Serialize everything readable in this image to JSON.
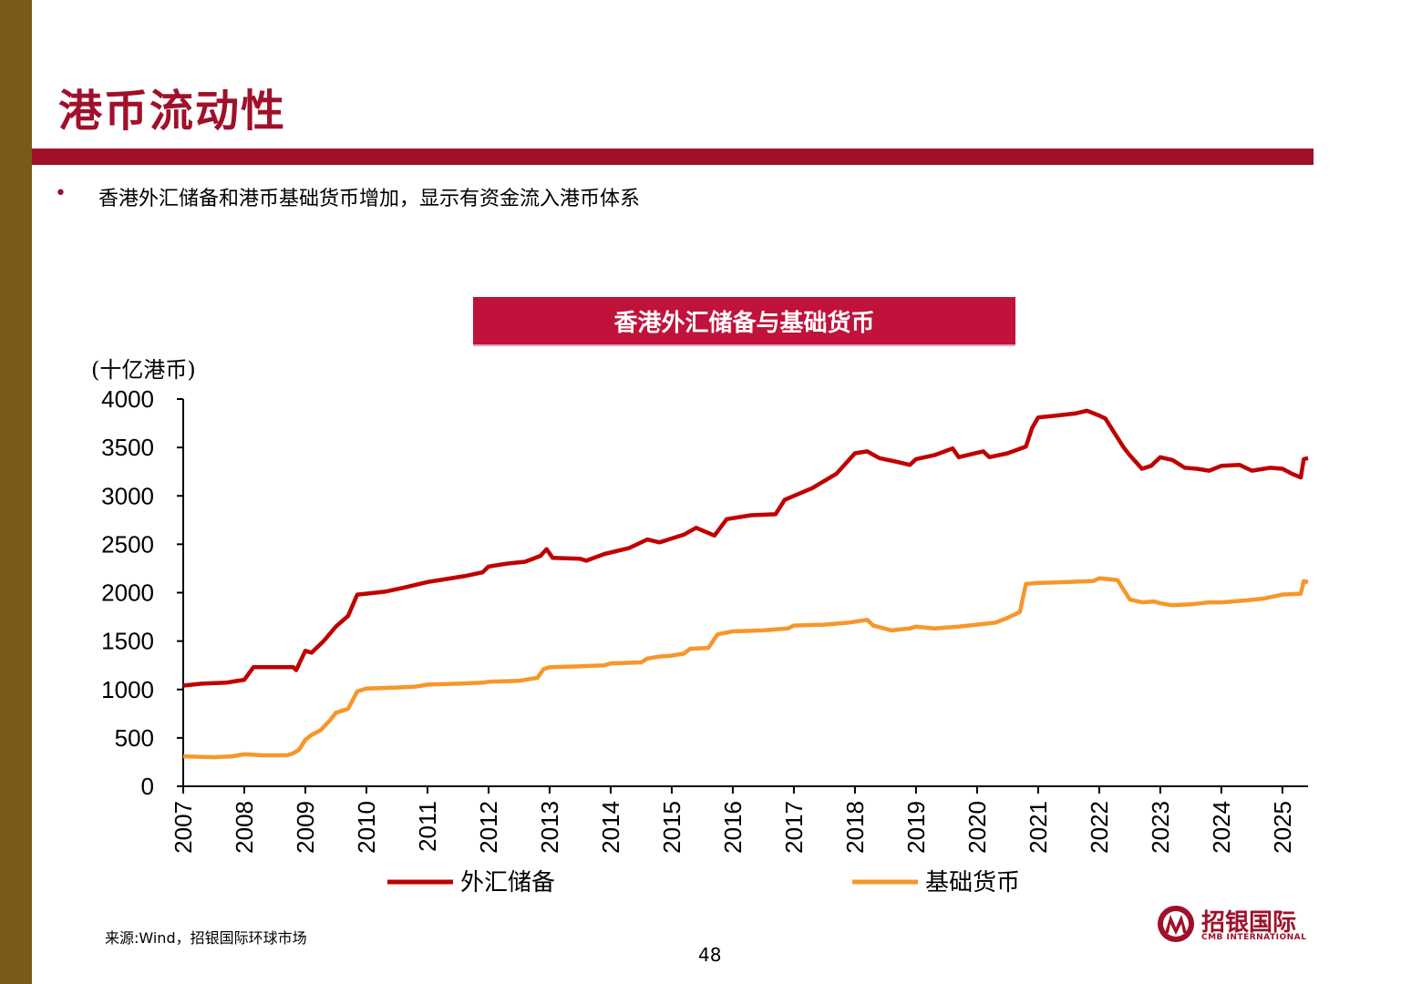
{
  "slide": {
    "title": "港币流动性",
    "bullet": "香港外汇储备和港币基础货币增加，显示有资金流入港币体系",
    "source": "来源:Wind，招银国际环球市场",
    "page_number": "48",
    "logo_cn": "招银国际",
    "logo_en": "CMB INTERNATIONAL"
  },
  "chart_data": {
    "type": "line",
    "title": "香港外汇储备与基础货币",
    "ylabel": "(十亿港币)",
    "ylim": [
      0,
      4000
    ],
    "yticks": [
      0,
      500,
      1000,
      1500,
      2000,
      2500,
      3000,
      3500,
      4000
    ],
    "xlim": [
      2007.0,
      2025.42
    ],
    "xticks": [
      "2007",
      "2008",
      "2009",
      "2010",
      "2011",
      "2012",
      "2013",
      "2014",
      "2015",
      "2016",
      "2017",
      "2018",
      "2019",
      "2020",
      "2021",
      "2022",
      "2023",
      "2024",
      "2025"
    ],
    "legend_position": "bottom",
    "grid": false,
    "series": [
      {
        "name": "外汇储备",
        "color": "#c00000",
        "points": [
          [
            2007.0,
            1040
          ],
          [
            2007.3,
            1060
          ],
          [
            2007.7,
            1070
          ],
          [
            2008.0,
            1100
          ],
          [
            2008.15,
            1230
          ],
          [
            2008.5,
            1230
          ],
          [
            2008.8,
            1230
          ],
          [
            2008.85,
            1200
          ],
          [
            2009.0,
            1400
          ],
          [
            2009.1,
            1380
          ],
          [
            2009.3,
            1500
          ],
          [
            2009.5,
            1650
          ],
          [
            2009.7,
            1760
          ],
          [
            2009.85,
            1980
          ],
          [
            2010.0,
            1990
          ],
          [
            2010.3,
            2010
          ],
          [
            2010.6,
            2050
          ],
          [
            2011.0,
            2110
          ],
          [
            2011.3,
            2140
          ],
          [
            2011.6,
            2170
          ],
          [
            2011.9,
            2210
          ],
          [
            2012.0,
            2270
          ],
          [
            2012.3,
            2300
          ],
          [
            2012.6,
            2320
          ],
          [
            2012.85,
            2380
          ],
          [
            2012.95,
            2450
          ],
          [
            2013.05,
            2360
          ],
          [
            2013.5,
            2350
          ],
          [
            2013.6,
            2330
          ],
          [
            2013.9,
            2400
          ],
          [
            2014.3,
            2460
          ],
          [
            2014.6,
            2550
          ],
          [
            2014.8,
            2520
          ],
          [
            2015.0,
            2560
          ],
          [
            2015.2,
            2600
          ],
          [
            2015.4,
            2670
          ],
          [
            2015.7,
            2590
          ],
          [
            2015.9,
            2760
          ],
          [
            2016.3,
            2800
          ],
          [
            2016.7,
            2810
          ],
          [
            2016.85,
            2960
          ],
          [
            2017.0,
            3000
          ],
          [
            2017.3,
            3080
          ],
          [
            2017.7,
            3230
          ],
          [
            2018.0,
            3440
          ],
          [
            2018.2,
            3460
          ],
          [
            2018.4,
            3390
          ],
          [
            2018.7,
            3350
          ],
          [
            2018.9,
            3320
          ],
          [
            2019.0,
            3380
          ],
          [
            2019.3,
            3420
          ],
          [
            2019.6,
            3490
          ],
          [
            2019.7,
            3400
          ],
          [
            2019.9,
            3430
          ],
          [
            2020.1,
            3460
          ],
          [
            2020.2,
            3400
          ],
          [
            2020.5,
            3440
          ],
          [
            2020.8,
            3510
          ],
          [
            2020.9,
            3700
          ],
          [
            2021.0,
            3810
          ],
          [
            2021.3,
            3830
          ],
          [
            2021.6,
            3850
          ],
          [
            2021.8,
            3880
          ],
          [
            2022.0,
            3830
          ],
          [
            2022.1,
            3800
          ],
          [
            2022.25,
            3650
          ],
          [
            2022.4,
            3500
          ],
          [
            2022.5,
            3420
          ],
          [
            2022.7,
            3280
          ],
          [
            2022.85,
            3310
          ],
          [
            2023.0,
            3400
          ],
          [
            2023.2,
            3370
          ],
          [
            2023.4,
            3290
          ],
          [
            2023.6,
            3280
          ],
          [
            2023.8,
            3260
          ],
          [
            2024.0,
            3310
          ],
          [
            2024.3,
            3320
          ],
          [
            2024.5,
            3260
          ],
          [
            2024.8,
            3290
          ],
          [
            2025.0,
            3280
          ],
          [
            2025.15,
            3230
          ],
          [
            2025.3,
            3190
          ],
          [
            2025.35,
            3380
          ],
          [
            2025.42,
            3390
          ]
        ]
      },
      {
        "name": "基础货币",
        "color": "#f7962b",
        "points": [
          [
            2007.0,
            310
          ],
          [
            2007.5,
            300
          ],
          [
            2007.8,
            310
          ],
          [
            2008.0,
            330
          ],
          [
            2008.3,
            320
          ],
          [
            2008.7,
            320
          ],
          [
            2008.8,
            340
          ],
          [
            2008.9,
            380
          ],
          [
            2009.0,
            480
          ],
          [
            2009.1,
            530
          ],
          [
            2009.25,
            580
          ],
          [
            2009.4,
            680
          ],
          [
            2009.5,
            760
          ],
          [
            2009.7,
            800
          ],
          [
            2009.85,
            980
          ],
          [
            2010.0,
            1010
          ],
          [
            2010.5,
            1020
          ],
          [
            2010.8,
            1030
          ],
          [
            2011.0,
            1050
          ],
          [
            2011.5,
            1060
          ],
          [
            2011.9,
            1070
          ],
          [
            2012.0,
            1080
          ],
          [
            2012.5,
            1090
          ],
          [
            2012.8,
            1120
          ],
          [
            2012.9,
            1210
          ],
          [
            2013.0,
            1230
          ],
          [
            2013.5,
            1240
          ],
          [
            2013.9,
            1250
          ],
          [
            2014.0,
            1270
          ],
          [
            2014.5,
            1280
          ],
          [
            2014.6,
            1320
          ],
          [
            2014.8,
            1340
          ],
          [
            2015.0,
            1350
          ],
          [
            2015.2,
            1370
          ],
          [
            2015.3,
            1420
          ],
          [
            2015.6,
            1430
          ],
          [
            2015.75,
            1570
          ],
          [
            2016.0,
            1600
          ],
          [
            2016.5,
            1610
          ],
          [
            2016.9,
            1630
          ],
          [
            2017.0,
            1660
          ],
          [
            2017.5,
            1670
          ],
          [
            2017.9,
            1690
          ],
          [
            2018.0,
            1700
          ],
          [
            2018.2,
            1720
          ],
          [
            2018.3,
            1660
          ],
          [
            2018.6,
            1610
          ],
          [
            2018.9,
            1630
          ],
          [
            2019.0,
            1650
          ],
          [
            2019.3,
            1630
          ],
          [
            2019.7,
            1650
          ],
          [
            2020.0,
            1670
          ],
          [
            2020.3,
            1690
          ],
          [
            2020.5,
            1740
          ],
          [
            2020.7,
            1800
          ],
          [
            2020.8,
            2090
          ],
          [
            2021.0,
            2100
          ],
          [
            2021.5,
            2110
          ],
          [
            2021.9,
            2120
          ],
          [
            2022.0,
            2150
          ],
          [
            2022.3,
            2130
          ],
          [
            2022.5,
            1930
          ],
          [
            2022.7,
            1900
          ],
          [
            2022.9,
            1910
          ],
          [
            2023.0,
            1890
          ],
          [
            2023.2,
            1870
          ],
          [
            2023.5,
            1880
          ],
          [
            2023.8,
            1900
          ],
          [
            2024.0,
            1900
          ],
          [
            2024.4,
            1920
          ],
          [
            2024.7,
            1940
          ],
          [
            2025.0,
            1980
          ],
          [
            2025.3,
            1990
          ],
          [
            2025.35,
            2120
          ],
          [
            2025.42,
            2110
          ]
        ]
      }
    ]
  }
}
